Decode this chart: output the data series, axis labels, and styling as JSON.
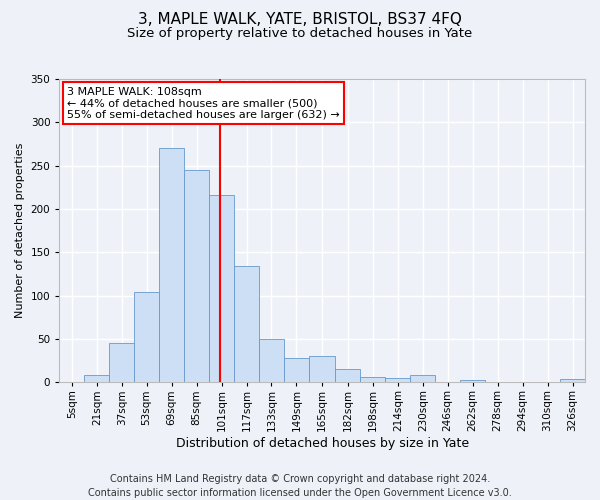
{
  "title": "3, MAPLE WALK, YATE, BRISTOL, BS37 4FQ",
  "subtitle": "Size of property relative to detached houses in Yate",
  "xlabel": "Distribution of detached houses by size in Yate",
  "ylabel": "Number of detached properties",
  "footer_line1": "Contains HM Land Registry data © Crown copyright and database right 2024.",
  "footer_line2": "Contains public sector information licensed under the Open Government Licence v3.0.",
  "annotation_line1": "3 MAPLE WALK: 108sqm",
  "annotation_line2": "← 44% of detached houses are smaller (500)",
  "annotation_line3": "55% of semi-detached houses are larger (632) →",
  "bar_color": "#ccdff5",
  "bar_edge_color": "#6699cc",
  "vline_color": "red",
  "vline_x": 108,
  "categories": [
    "5sqm",
    "21sqm",
    "37sqm",
    "53sqm",
    "69sqm",
    "85sqm",
    "101sqm",
    "117sqm",
    "133sqm",
    "149sqm",
    "165sqm",
    "182sqm",
    "198sqm",
    "214sqm",
    "230sqm",
    "246sqm",
    "262sqm",
    "278sqm",
    "294sqm",
    "310sqm",
    "326sqm"
  ],
  "bin_edges": [
    5,
    21,
    37,
    53,
    69,
    85,
    101,
    117,
    133,
    149,
    165,
    182,
    198,
    214,
    230,
    246,
    262,
    278,
    294,
    310,
    326,
    342
  ],
  "values": [
    0,
    9,
    45,
    104,
    270,
    245,
    216,
    134,
    50,
    28,
    30,
    15,
    6,
    5,
    8,
    0,
    3,
    1,
    0,
    0,
    4
  ],
  "ylim": [
    0,
    350
  ],
  "yticks": [
    0,
    50,
    100,
    150,
    200,
    250,
    300,
    350
  ],
  "background_color": "#eef2f8",
  "grid_color": "#ffffff",
  "annotation_box_color": "#ffffff",
  "annotation_box_edge": "red",
  "title_fontsize": 11,
  "subtitle_fontsize": 9.5,
  "annotation_fontsize": 8,
  "footer_fontsize": 7,
  "ylabel_fontsize": 8,
  "xlabel_fontsize": 9,
  "tick_fontsize": 7.5
}
